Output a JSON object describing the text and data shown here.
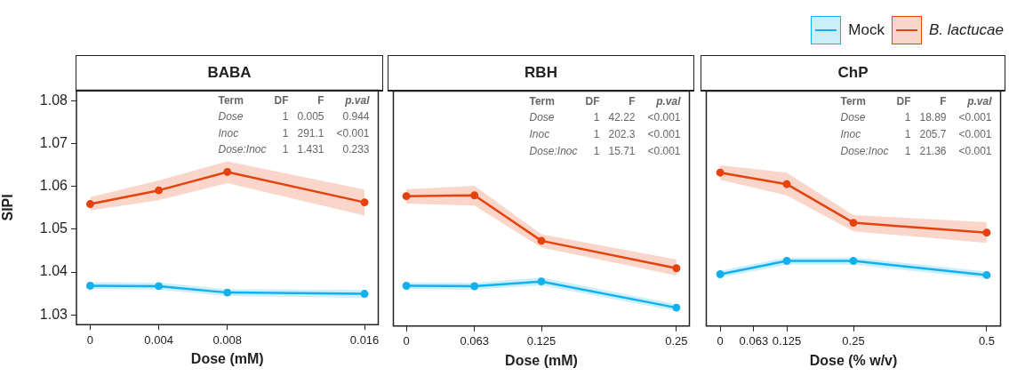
{
  "chart_data": [
    {
      "type": "line",
      "title": "BABA",
      "xlabel": "Dose (mM)",
      "ylabel": "SIPI",
      "x": [
        0,
        0.004,
        0.008,
        0.016
      ],
      "xlim": [
        -0.0008,
        0.0168
      ],
      "xticks": [
        0,
        0.004,
        0.008,
        0.016
      ],
      "ylim": [
        1.0277,
        1.0825
      ],
      "yticks": [
        1.03,
        1.04,
        1.05,
        1.06,
        1.07,
        1.08
      ],
      "marker": "circle",
      "legend": "top right",
      "series": [
        {
          "name": "Mock",
          "color": "#12b0ec",
          "values": [
            1.0368,
            1.0367,
            1.0352,
            1.0349
          ],
          "lower": [
            1.036,
            1.0359,
            1.0344,
            1.034
          ],
          "upper": [
            1.0376,
            1.0375,
            1.036,
            1.0358
          ]
        },
        {
          "name": "B. lactucae",
          "color": "#e5420e",
          "values": [
            1.0559,
            1.0591,
            1.0634,
            1.0563
          ],
          "lower": [
            1.0544,
            1.0568,
            1.0608,
            1.0532
          ],
          "upper": [
            1.0575,
            1.0614,
            1.0659,
            1.0593
          ]
        }
      ],
      "annotations": [
        "Term DF F p.val",
        "Dose 1 0.005 0.944",
        "Inoc 1 291.1 <0.001",
        "Dose:Inoc 1 1.431 0.233"
      ]
    },
    {
      "type": "line",
      "title": "RBH",
      "xlabel": "Dose (mM)",
      "x": [
        0,
        0.063,
        0.125,
        0.25
      ],
      "xlim": [
        -0.012,
        0.262
      ],
      "xticks": [
        0,
        0.063,
        0.125,
        0.25
      ],
      "ylim": [
        1.0277,
        1.0825
      ],
      "yticks": [
        1.03,
        1.04,
        1.05,
        1.06,
        1.07,
        1.08
      ],
      "tick_labels": "x",
      "marker": "circle",
      "series": [
        {
          "name": "Mock",
          "color": "#12b0ec",
          "values": [
            1.0371,
            1.037,
            1.0381,
            1.032
          ],
          "lower": [
            1.0363,
            1.0362,
            1.0372,
            1.0312
          ],
          "upper": [
            1.0379,
            1.0378,
            1.039,
            1.0328
          ]
        },
        {
          "name": "B. lactucae",
          "color": "#e5420e",
          "values": [
            1.058,
            1.0582,
            1.0476,
            1.0412
          ],
          "lower": [
            1.0563,
            1.0558,
            1.046,
            1.0395
          ],
          "upper": [
            1.0596,
            1.0604,
            1.0491,
            1.0432
          ]
        }
      ],
      "annotations": [
        "Term DF F p.val",
        "Dose 1 42.22 <0.001",
        "Inoc 1 202.3 <0.001",
        "Dose:Inoc 1 15.71 <0.001"
      ]
    },
    {
      "type": "line",
      "title": "ChP",
      "xlabel": "Dose (% w/v)",
      "x": [
        0,
        0.125,
        0.25,
        0.5
      ],
      "xlim": [
        -0.026,
        0.526
      ],
      "xticks": [
        0,
        0.063,
        0.125,
        0.25,
        0.5
      ],
      "ylim": [
        1.0277,
        1.0825
      ],
      "yticks": [
        1.03,
        1.04,
        1.05,
        1.06,
        1.07,
        1.08
      ],
      "tick_labels": "x",
      "marker": "circle",
      "series": [
        {
          "name": "Mock",
          "color": "#12b0ec",
          "values": [
            1.0398,
            1.0429,
            1.0429,
            1.0396
          ],
          "lower": [
            1.039,
            1.042,
            1.042,
            1.0388
          ],
          "upper": [
            1.0406,
            1.0437,
            1.0437,
            1.0404
          ]
        },
        {
          "name": "B. lactucae",
          "color": "#e5420e",
          "values": [
            1.0635,
            1.0608,
            1.0518,
            1.0495
          ],
          "lower": [
            1.0618,
            1.0582,
            1.0498,
            1.0471
          ],
          "upper": [
            1.0652,
            1.0635,
            1.0536,
            1.0519
          ]
        }
      ],
      "annotations": [
        "Term DF F p.val",
        "Dose 1 18.89 <0.001",
        "Inoc 1 205.7 <0.001",
        "Dose:Inoc 1 21.36 <0.001"
      ]
    }
  ]
}
